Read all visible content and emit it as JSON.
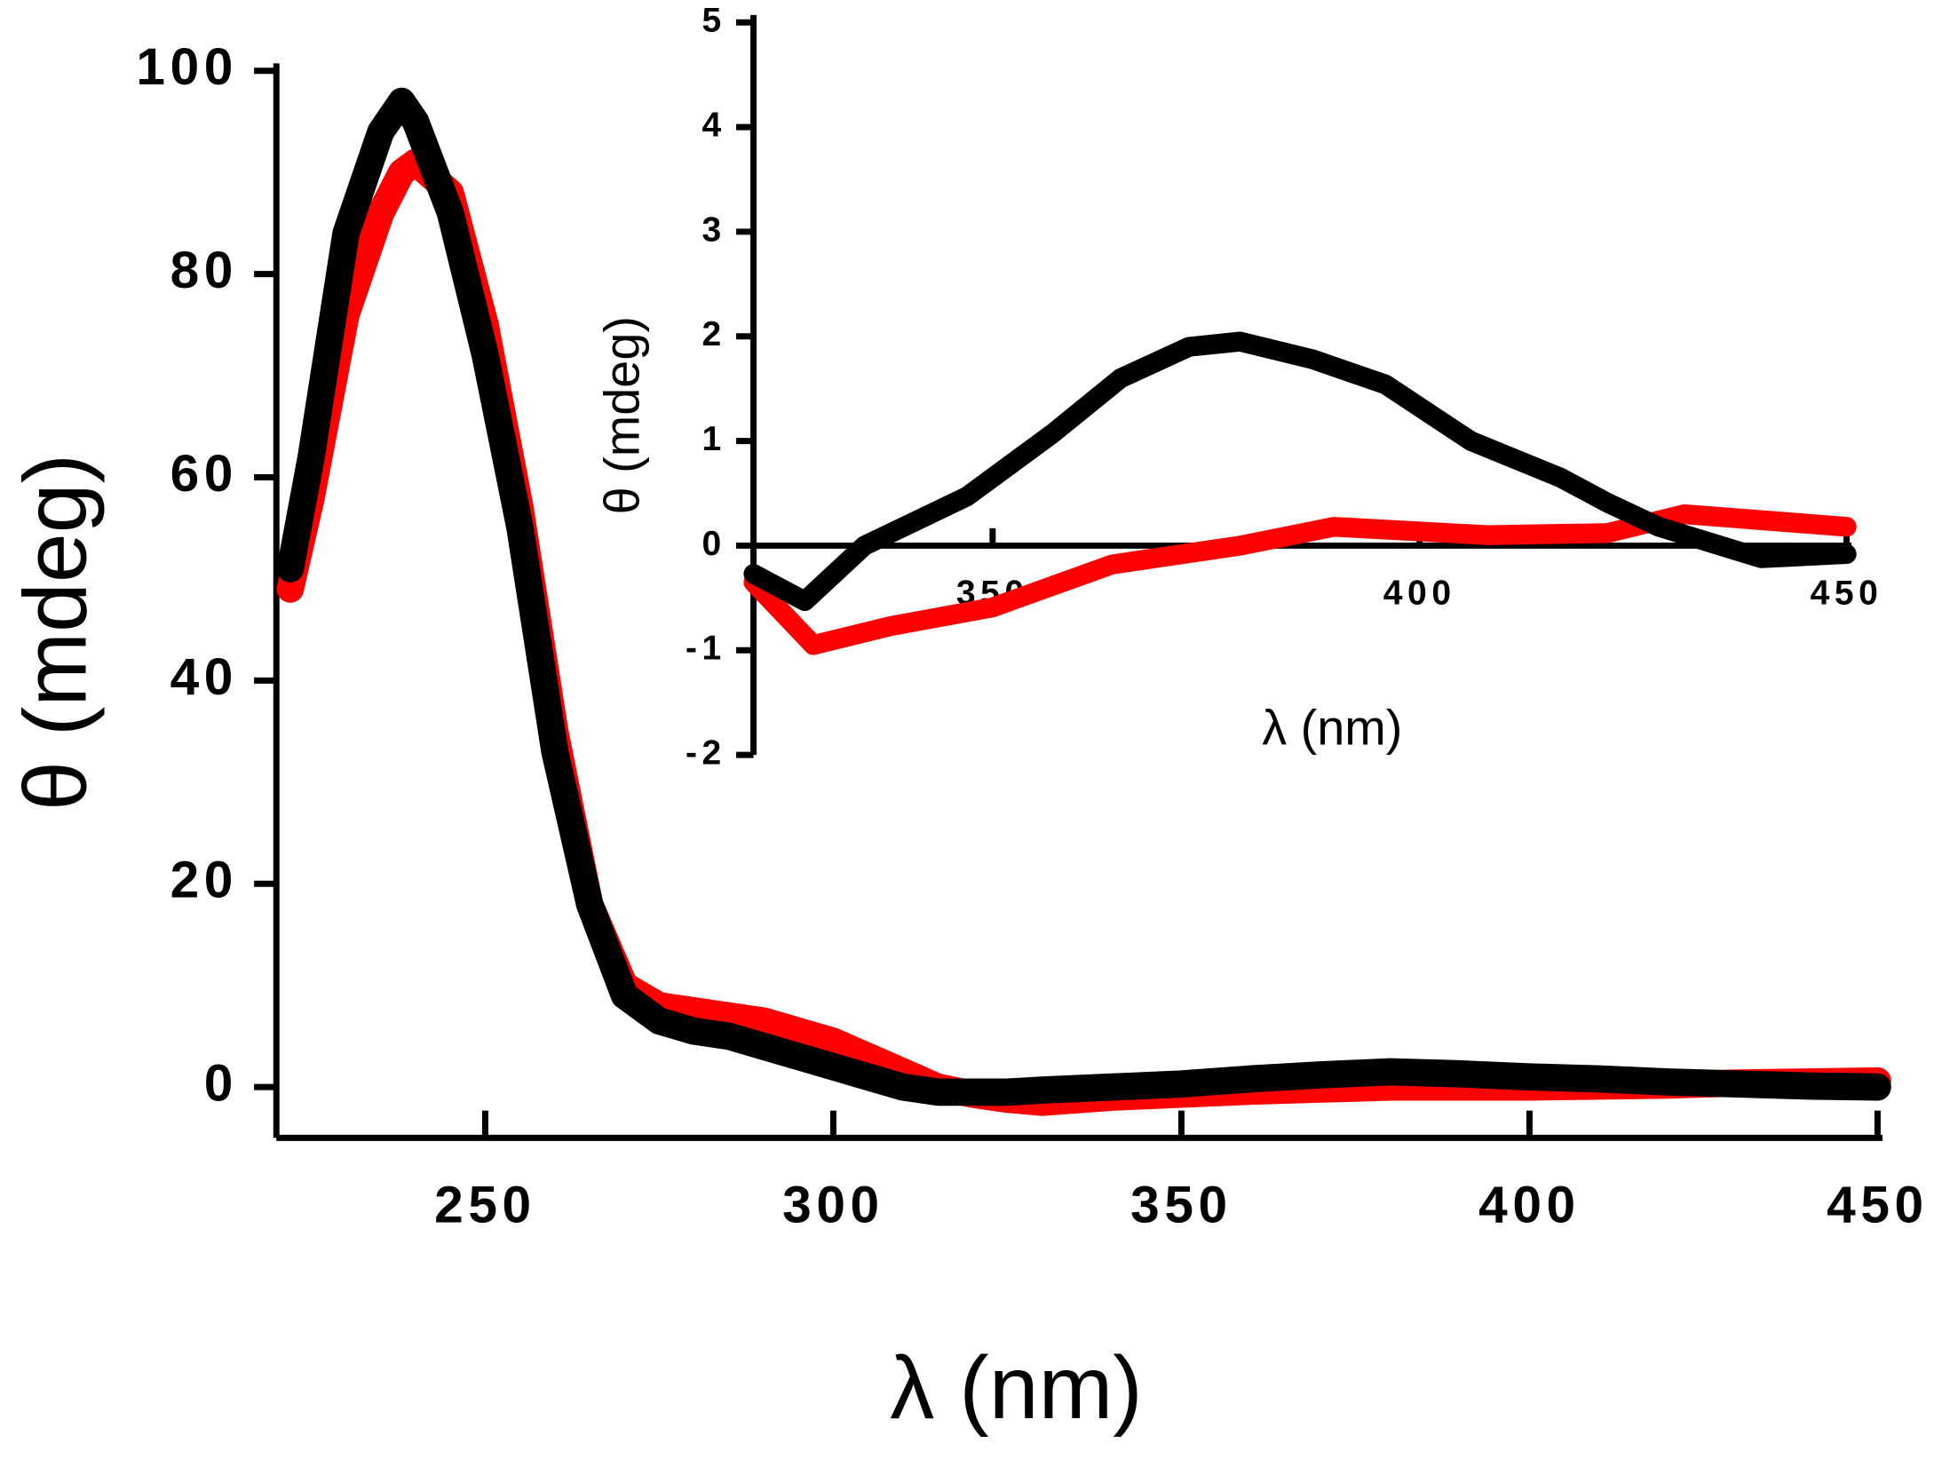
{
  "chart_data": [
    {
      "type": "line",
      "xlabel": "λ (nm)",
      "ylabel": "θ (mdeg)",
      "xlim": [
        220,
        450
      ],
      "xticks": [
        250,
        300,
        350,
        400,
        450
      ],
      "ylim": [
        -5,
        100
      ],
      "yticks": [
        0,
        20,
        40,
        60,
        80,
        100
      ],
      "series": [
        {
          "color": "#ff0000",
          "x": [
            222,
            225,
            230,
            235,
            238,
            240,
            245,
            250,
            255,
            260,
            265,
            270,
            275,
            280,
            285,
            290,
            295,
            300,
            305,
            310,
            315,
            320,
            325,
            330,
            340,
            350,
            360,
            370,
            380,
            390,
            400,
            410,
            420,
            430,
            440,
            450
          ],
          "values": [
            49,
            58,
            76,
            86,
            90,
            91,
            88,
            75,
            57,
            35,
            18,
            10,
            8,
            7.5,
            7,
            6.5,
            5.5,
            4.5,
            3,
            1.5,
            0,
            -0.7,
            -1.2,
            -1.5,
            -1,
            -0.7,
            -0.4,
            -0.2,
            0,
            0,
            0,
            0.1,
            0.2,
            0.4,
            0.5,
            0.6
          ]
        },
        {
          "color": "#000000",
          "x": [
            222,
            225,
            230,
            235,
            238,
            240,
            245,
            250,
            255,
            260,
            265,
            270,
            275,
            280,
            285,
            290,
            295,
            300,
            305,
            310,
            315,
            320,
            325,
            330,
            340,
            350,
            360,
            370,
            380,
            390,
            400,
            410,
            420,
            430,
            440,
            450
          ],
          "values": [
            51,
            62,
            84,
            94,
            97,
            95,
            86,
            72,
            55,
            33,
            18,
            9,
            6.5,
            5.5,
            5,
            4,
            3,
            2,
            1,
            0,
            -0.5,
            -0.5,
            -0.5,
            -0.3,
            0,
            0.3,
            0.8,
            1.2,
            1.5,
            1.3,
            1,
            0.8,
            0.5,
            0.3,
            0.1,
            0
          ]
        }
      ]
    },
    {
      "type": "line",
      "xlabel": "λ (nm)",
      "ylabel": "θ (mdeg)",
      "xlim": [
        322,
        450
      ],
      "xticks": [
        350,
        400,
        450
      ],
      "ylim": [
        -2,
        5
      ],
      "yticks": [
        -2,
        -1,
        0,
        1,
        2,
        3,
        4,
        5
      ],
      "series": [
        {
          "color": "#ff0000",
          "x": [
            322,
            329,
            338,
            350,
            364,
            379,
            390,
            408,
            422,
            431,
            450
          ],
          "values": [
            -0.35,
            -0.95,
            -0.77,
            -0.59,
            -0.18,
            0,
            0.18,
            0.1,
            0.12,
            0.3,
            0.18
          ]
        },
        {
          "color": "#000000",
          "x": [
            322,
            328,
            335,
            347,
            357,
            365,
            373,
            379,
            387.5,
            396,
            406,
            416.5,
            422,
            428,
            440,
            450
          ],
          "values": [
            -0.27,
            -0.53,
            0,
            0.47,
            1.07,
            1.6,
            1.9,
            1.95,
            1.78,
            1.54,
            1.0,
            0.65,
            0.41,
            0.18,
            -0.12,
            -0.08
          ]
        }
      ]
    }
  ]
}
